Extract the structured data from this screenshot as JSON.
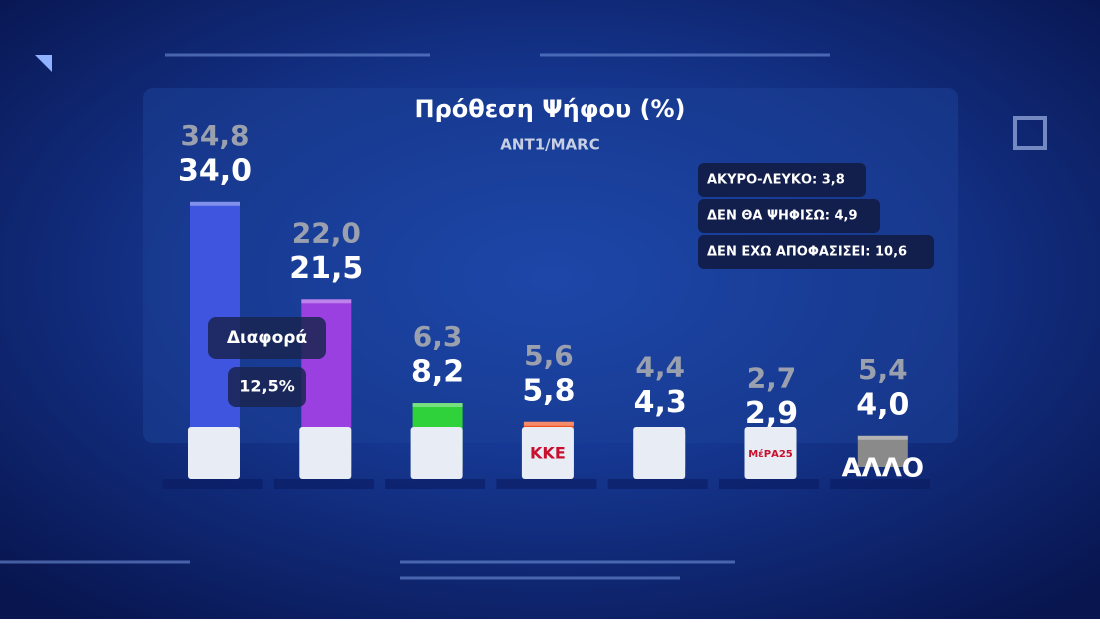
{
  "chart_data": {
    "type": "bar",
    "title": "Πρόθεση Ψήφου (%)",
    "subtitle": "ANT1/MARC",
    "categories": [
      null,
      null,
      null,
      "ΚΚΕ",
      null,
      "ΜέΡΑ25",
      "ΑΛΛΟ"
    ],
    "series": [
      {
        "values": [
          34.0,
          21.5,
          8.2,
          5.8,
          4.3,
          2.9,
          4.0
        ],
        "value_labels": [
          "34,0",
          "21,5",
          "8,2",
          "5,8",
          "4,3",
          "2,9",
          "4,0"
        ],
        "colors": [
          "#3f55e0",
          "#9a3fe0",
          "#2fd23a",
          "#f0501e",
          "#46c9f0",
          "#f0922e",
          "#8a8a8a"
        ]
      },
      {
        "values": [
          34.8,
          22.0,
          6.3,
          5.6,
          4.4,
          2.7,
          5.4
        ],
        "value_labels": [
          "34,8",
          "22,0",
          "6,3",
          "5,6",
          "4,4",
          "2,7",
          "5,4"
        ],
        "color": "#9aa0ad"
      }
    ],
    "annotations": [
      "Διαφορά",
      "12,5%"
    ],
    "info": [
      "ΑΚΥΡΟ-ΛΕΥΚΟ: 3,8",
      "ΔΕΝ ΘΑ ΨΗΦΙΣΩ: 4,9",
      "ΔΕΝ ΕΧΩ ΑΠΟΦΑΣΙΣΕΙ: 10,6"
    ]
  }
}
